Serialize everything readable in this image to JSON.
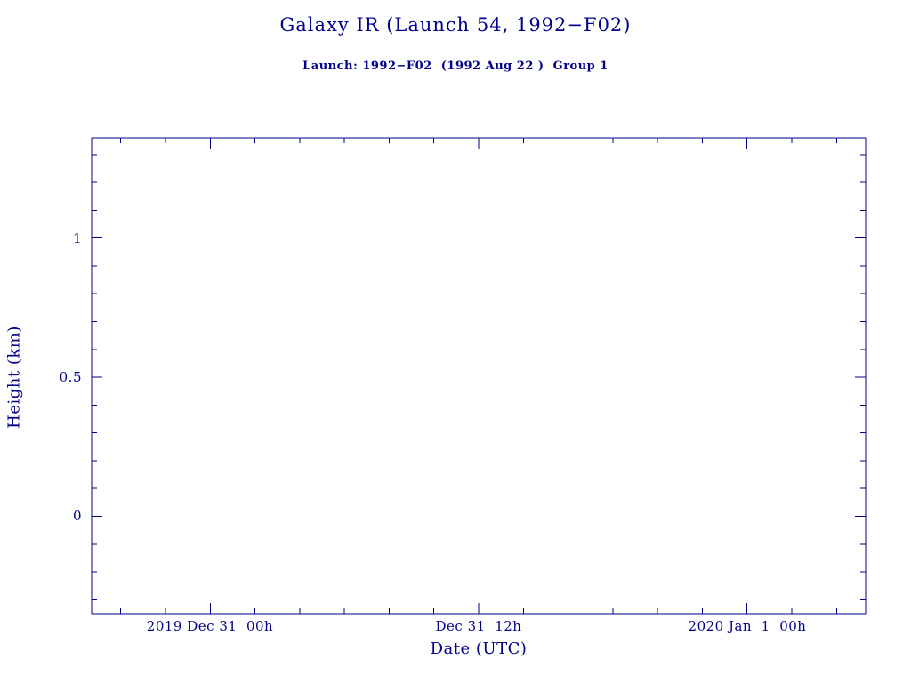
{
  "window": {
    "background": "#FFFFFF"
  },
  "colors": {
    "ink": "#00008B"
  },
  "chart_data": {
    "type": "line",
    "title": "Galaxy IR (Launch 54, 1992−F02)",
    "subtitle": "Launch: 1992−F02  (1992 Aug 22 )  Group 1",
    "xlabel": "Date (UTC)",
    "ylabel": "Height (km)",
    "series": [],
    "notes": "Axes frame only; no data points are plotted in the visible area.",
    "grid": false,
    "legend": false,
    "x_axis": {
      "unit": "hours since 2019 Dec 31 00:00 UTC (estimated from tick spacing)",
      "min": -5.3,
      "max": 29.3,
      "major_ticks": [
        0,
        12,
        24
      ],
      "major_tick_labels": [
        "2019 Dec 31  00h",
        "Dec 31  12h",
        "2020 Jan  1  00h"
      ],
      "minor_step": 2
    },
    "y_axis": {
      "min": -0.35,
      "max": 1.36,
      "major_ticks": [
        1,
        0.5,
        0
      ],
      "major_tick_labels": [
        "1",
        "0.5",
        "0"
      ],
      "minor_step": 0.1
    }
  }
}
